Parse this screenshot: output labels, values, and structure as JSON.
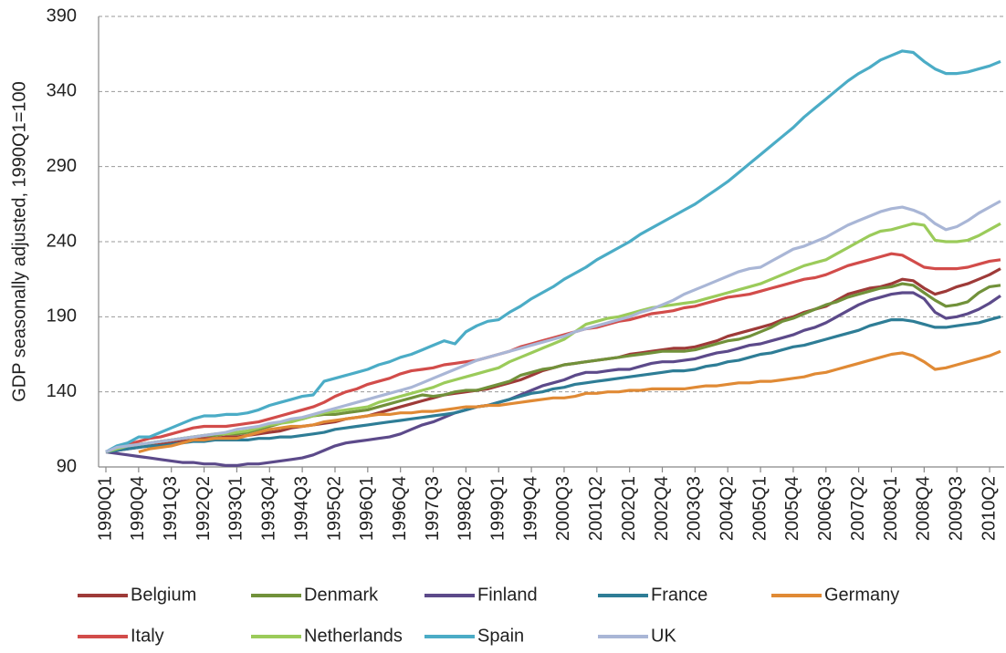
{
  "chart_data": {
    "type": "line",
    "y_label": "GDP seasonally adjusted, 1990Q1=100",
    "categories": [
      "1990Q1",
      null,
      null,
      "1990Q4",
      null,
      null,
      "1991Q3",
      null,
      null,
      "1992Q2",
      null,
      null,
      "1993Q1",
      null,
      null,
      "1993Q4",
      null,
      null,
      "1994Q3",
      null,
      null,
      "1995Q2",
      null,
      null,
      "1996Q1",
      null,
      null,
      "1996Q4",
      null,
      null,
      "1997Q3",
      null,
      null,
      "1998Q2",
      null,
      null,
      "1999Q1",
      null,
      null,
      "1999Q4",
      null,
      null,
      "2000Q3",
      null,
      null,
      "2001Q2",
      null,
      null,
      "2002Q1",
      null,
      null,
      "2002Q4",
      null,
      null,
      "2003Q3",
      null,
      null,
      "2004Q2",
      null,
      null,
      "2005Q1",
      null,
      null,
      "2005Q4",
      null,
      null,
      "2006Q3",
      null,
      null,
      "2007Q2",
      null,
      null,
      "2008Q1",
      null,
      null,
      "2008Q4",
      null,
      null,
      "2009Q3",
      null,
      null,
      "2010Q2",
      null
    ],
    "ylim": [
      90,
      390
    ],
    "yticks": [
      90,
      140,
      190,
      240,
      290,
      340,
      390
    ],
    "grid": true,
    "series": [
      {
        "name": "Belgium",
        "color": "#9e3a38",
        "values": [
          100,
          101,
          102,
          103,
          104,
          105,
          106,
          107,
          108,
          109,
          109,
          110,
          110,
          111,
          112,
          113,
          114,
          116,
          117,
          118,
          119,
          120,
          122,
          123,
          124,
          126,
          128,
          130,
          132,
          134,
          136,
          138,
          139,
          140,
          141,
          142,
          144,
          146,
          148,
          151,
          154,
          156,
          158,
          159,
          160,
          161,
          162,
          163,
          165,
          166,
          167,
          168,
          169,
          169,
          170,
          172,
          174,
          177,
          179,
          181,
          183,
          185,
          188,
          190,
          193,
          195,
          197,
          201,
          205,
          207,
          209,
          210,
          212,
          215,
          214,
          209,
          205,
          207,
          210,
          212,
          215,
          218,
          222
        ]
      },
      {
        "name": "Denmark",
        "color": "#71913a",
        "values": [
          100,
          102,
          104,
          105,
          106,
          107,
          108,
          109,
          110,
          111,
          111,
          112,
          112,
          113,
          115,
          117,
          119,
          121,
          122,
          124,
          125,
          125,
          126,
          127,
          128,
          130,
          132,
          134,
          136,
          138,
          137,
          138,
          140,
          141,
          141,
          143,
          145,
          147,
          151,
          153,
          155,
          156,
          158,
          159,
          160,
          161,
          162,
          163,
          164,
          165,
          166,
          167,
          167,
          167,
          168,
          170,
          172,
          174,
          175,
          177,
          180,
          183,
          187,
          189,
          192,
          195,
          198,
          200,
          203,
          205,
          207,
          209,
          210,
          212,
          211,
          206,
          201,
          197,
          198,
          200,
          206,
          210,
          211
        ]
      },
      {
        "name": "Finland",
        "color": "#5c4a8a",
        "values": [
          100,
          99,
          98,
          97,
          96,
          95,
          94,
          93,
          93,
          92,
          92,
          91,
          91,
          92,
          92,
          93,
          94,
          95,
          96,
          98,
          101,
          104,
          106,
          107,
          108,
          109,
          110,
          112,
          115,
          118,
          120,
          123,
          126,
          128,
          130,
          131,
          133,
          135,
          138,
          141,
          144,
          146,
          148,
          151,
          153,
          153,
          154,
          155,
          155,
          157,
          159,
          160,
          160,
          161,
          162,
          164,
          166,
          167,
          169,
          171,
          172,
          174,
          176,
          178,
          181,
          183,
          186,
          190,
          194,
          198,
          201,
          203,
          205,
          206,
          206,
          202,
          193,
          189,
          190,
          192,
          195,
          199,
          204
        ]
      },
      {
        "name": "France",
        "color": "#2e7d96",
        "values": [
          100,
          101,
          102,
          103,
          104,
          104,
          105,
          106,
          107,
          107,
          108,
          108,
          108,
          108,
          109,
          109,
          110,
          110,
          111,
          112,
          113,
          115,
          116,
          117,
          118,
          119,
          120,
          121,
          122,
          123,
          124,
          125,
          126,
          128,
          130,
          131,
          133,
          135,
          137,
          139,
          140,
          142,
          143,
          145,
          146,
          147,
          148,
          149,
          150,
          151,
          152,
          153,
          154,
          154,
          155,
          157,
          158,
          160,
          161,
          163,
          165,
          166,
          168,
          170,
          171,
          173,
          175,
          177,
          179,
          181,
          184,
          186,
          188,
          188,
          187,
          185,
          183,
          183,
          184,
          185,
          186,
          188,
          190
        ]
      },
      {
        "name": "Germany",
        "color": "#e08a35",
        "values": [
          null,
          null,
          null,
          100,
          102,
          103,
          104,
          106,
          108,
          108,
          109,
          109,
          109,
          111,
          113,
          115,
          116,
          117,
          117,
          118,
          120,
          121,
          122,
          123,
          124,
          125,
          125,
          126,
          126,
          127,
          127,
          128,
          129,
          130,
          130,
          131,
          131,
          132,
          133,
          134,
          135,
          136,
          136,
          137,
          139,
          139,
          140,
          140,
          141,
          141,
          142,
          142,
          142,
          142,
          143,
          144,
          144,
          145,
          146,
          146,
          147,
          147,
          148,
          149,
          150,
          152,
          153,
          155,
          157,
          159,
          161,
          163,
          165,
          166,
          164,
          160,
          155,
          156,
          158,
          160,
          162,
          164,
          167
        ]
      },
      {
        "name": "Italy",
        "color": "#d24c4a",
        "values": [
          100,
          103,
          105,
          107,
          109,
          110,
          112,
          114,
          116,
          117,
          117,
          117,
          118,
          119,
          120,
          122,
          124,
          126,
          128,
          130,
          133,
          137,
          140,
          142,
          145,
          147,
          149,
          152,
          154,
          155,
          156,
          158,
          159,
          160,
          161,
          163,
          165,
          167,
          170,
          172,
          174,
          176,
          178,
          180,
          182,
          183,
          185,
          187,
          188,
          190,
          192,
          193,
          194,
          196,
          197,
          199,
          201,
          203,
          204,
          205,
          207,
          209,
          211,
          213,
          215,
          216,
          218,
          221,
          224,
          226,
          228,
          230,
          232,
          231,
          227,
          223,
          222,
          222,
          222,
          223,
          225,
          227,
          228
        ]
      },
      {
        "name": "Netherlands",
        "color": "#9bcb5a",
        "values": [
          100,
          102,
          104,
          105,
          106,
          107,
          108,
          109,
          110,
          111,
          112,
          112,
          113,
          114,
          116,
          118,
          119,
          120,
          122,
          124,
          126,
          127,
          128,
          129,
          130,
          133,
          135,
          137,
          139,
          141,
          143,
          146,
          148,
          150,
          152,
          154,
          156,
          160,
          163,
          166,
          169,
          172,
          175,
          180,
          185,
          187,
          189,
          190,
          192,
          194,
          196,
          197,
          198,
          199,
          200,
          202,
          204,
          206,
          208,
          210,
          212,
          215,
          218,
          221,
          224,
          226,
          228,
          232,
          236,
          240,
          244,
          247,
          248,
          250,
          252,
          251,
          241,
          240,
          240,
          241,
          244,
          248,
          252
        ]
      },
      {
        "name": "Spain",
        "color": "#4bacc6",
        "values": [
          100,
          104,
          106,
          110,
          110,
          113,
          116,
          119,
          122,
          124,
          124,
          125,
          125,
          126,
          128,
          131,
          133,
          135,
          137,
          138,
          147,
          149,
          151,
          153,
          155,
          158,
          160,
          163,
          165,
          168,
          171,
          174,
          172,
          180,
          184,
          187,
          188,
          193,
          197,
          202,
          206,
          210,
          215,
          219,
          223,
          228,
          232,
          236,
          240,
          245,
          249,
          253,
          257,
          261,
          265,
          270,
          275,
          280,
          286,
          292,
          298,
          304,
          310,
          316,
          323,
          329,
          335,
          341,
          347,
          352,
          356,
          361,
          364,
          367,
          366,
          360,
          355,
          352,
          352,
          353,
          355,
          357,
          360
        ]
      },
      {
        "name": "UK",
        "color": "#a9b6d6",
        "values": [
          100,
          103,
          104,
          105,
          106,
          107,
          108,
          109,
          110,
          111,
          112,
          113,
          115,
          116,
          117,
          119,
          120,
          122,
          123,
          125,
          127,
          129,
          131,
          133,
          135,
          137,
          139,
          141,
          143,
          146,
          149,
          152,
          155,
          158,
          161,
          163,
          165,
          167,
          169,
          171,
          173,
          175,
          177,
          180,
          182,
          184,
          186,
          188,
          190,
          193,
          195,
          198,
          201,
          205,
          208,
          211,
          214,
          217,
          220,
          222,
          223,
          227,
          231,
          235,
          237,
          240,
          243,
          247,
          251,
          254,
          257,
          260,
          262,
          263,
          261,
          258,
          252,
          248,
          250,
          254,
          259,
          263,
          267
        ]
      }
    ]
  }
}
